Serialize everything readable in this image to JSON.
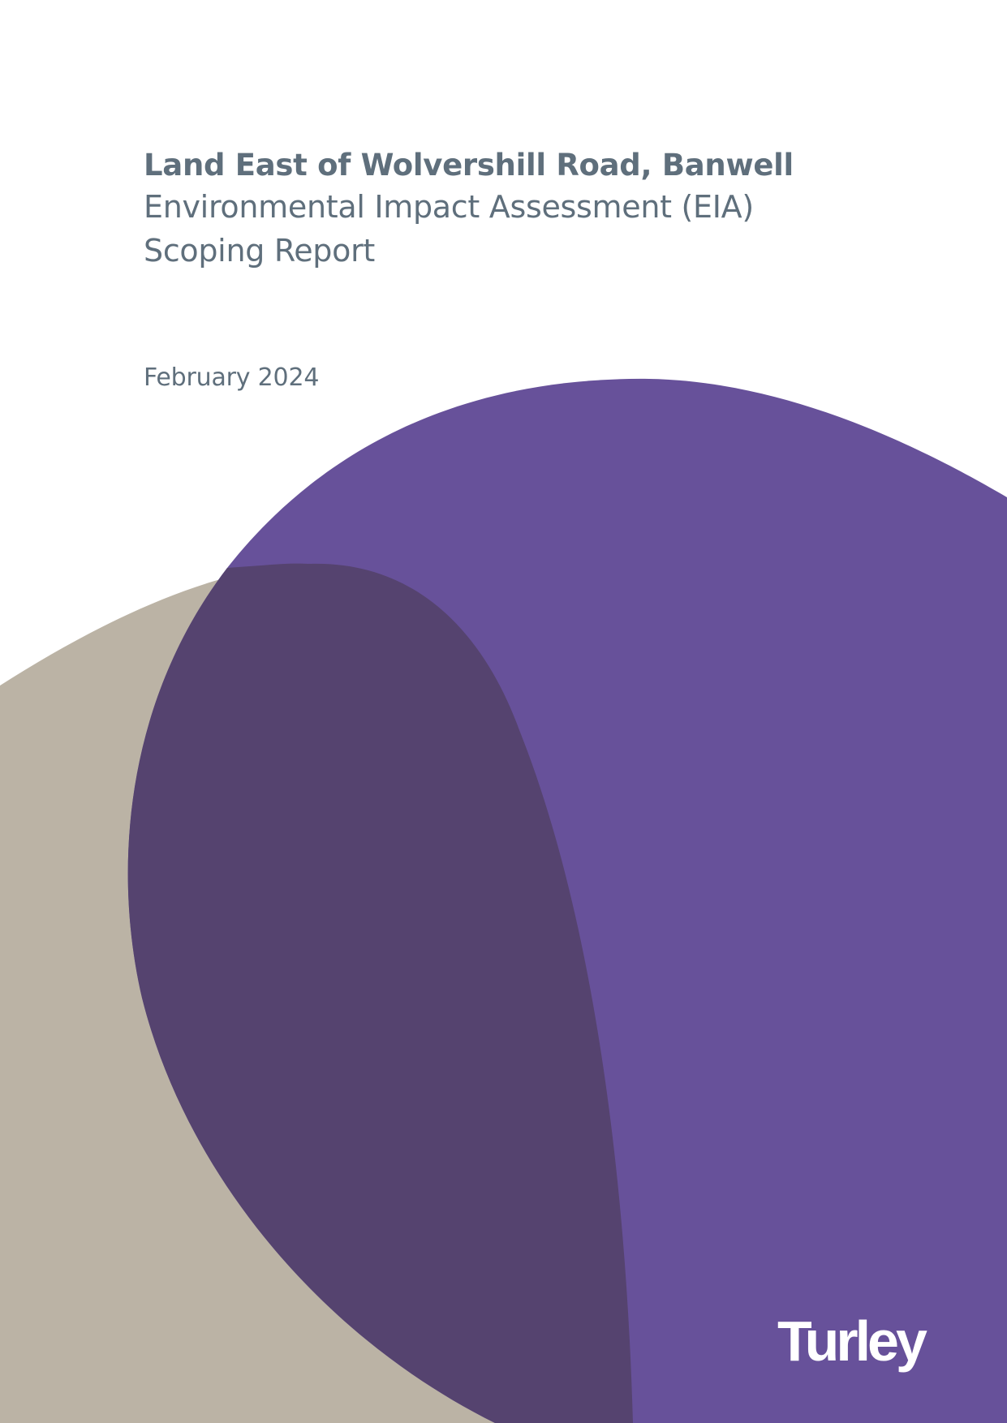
{
  "document": {
    "title": "Land East of Wolvershill Road, Banwell",
    "subtitle_line1": "Environmental Impact Assessment (EIA)",
    "subtitle_line2": "Scoping Report",
    "date": "February 2024",
    "logo_text": "Turley"
  },
  "colors": {
    "text": "#5f6f7c",
    "purple": "#67519a",
    "taupe": "#bbb3a5",
    "overlap": "#55436f",
    "logo": "#ffffff"
  }
}
